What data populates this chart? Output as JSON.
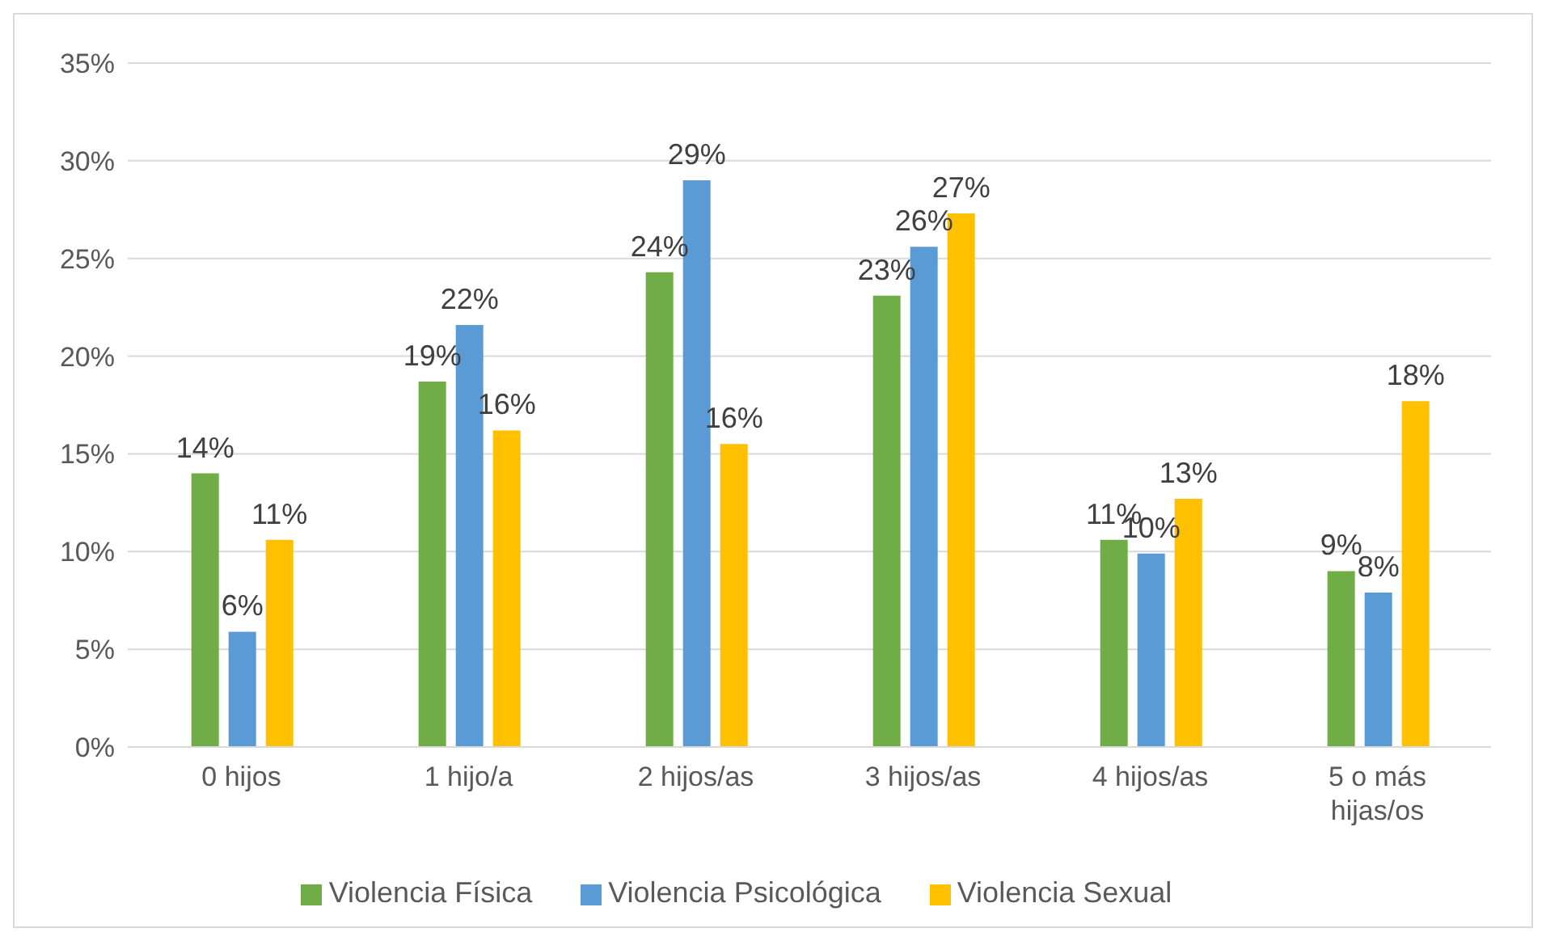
{
  "chart_data": {
    "type": "bar",
    "categories": [
      "0 hijos",
      "1 hijo/a",
      "2 hijos/as",
      "3 hijos/as",
      "4 hijos/as",
      "5 o más hijas/os"
    ],
    "series": [
      {
        "name": "Violencia Física",
        "color": "#70ad47",
        "values": [
          14.0,
          18.7,
          24.3,
          23.1,
          10.6,
          9.0
        ],
        "value_labels": [
          "14%",
          "19%",
          "24%",
          "23%",
          "11%",
          "9%"
        ]
      },
      {
        "name": "Violencia Psicológica",
        "color": "#5b9bd5",
        "values": [
          5.9,
          21.6,
          29.0,
          25.6,
          9.9,
          7.9
        ],
        "value_labels": [
          "6%",
          "22%",
          "29%",
          "26%",
          "10%",
          "8%"
        ]
      },
      {
        "name": "Violencia Sexual",
        "color": "#ffc000",
        "values": [
          10.6,
          16.2,
          15.5,
          27.3,
          12.7,
          17.7
        ],
        "value_labels": [
          "11%",
          "16%",
          "16%",
          "27%",
          "13%",
          "18%"
        ]
      }
    ],
    "ylim": [
      0,
      35
    ],
    "yticks": [
      {
        "value": 0,
        "label": "0%"
      },
      {
        "value": 5,
        "label": "5%"
      },
      {
        "value": 10,
        "label": "10%"
      },
      {
        "value": 15,
        "label": "15%"
      },
      {
        "value": 20,
        "label": "20%"
      },
      {
        "value": 25,
        "label": "25%"
      },
      {
        "value": 30,
        "label": "30%"
      },
      {
        "value": 35,
        "label": "35%"
      }
    ],
    "grid": "y",
    "legend": "bottom"
  }
}
